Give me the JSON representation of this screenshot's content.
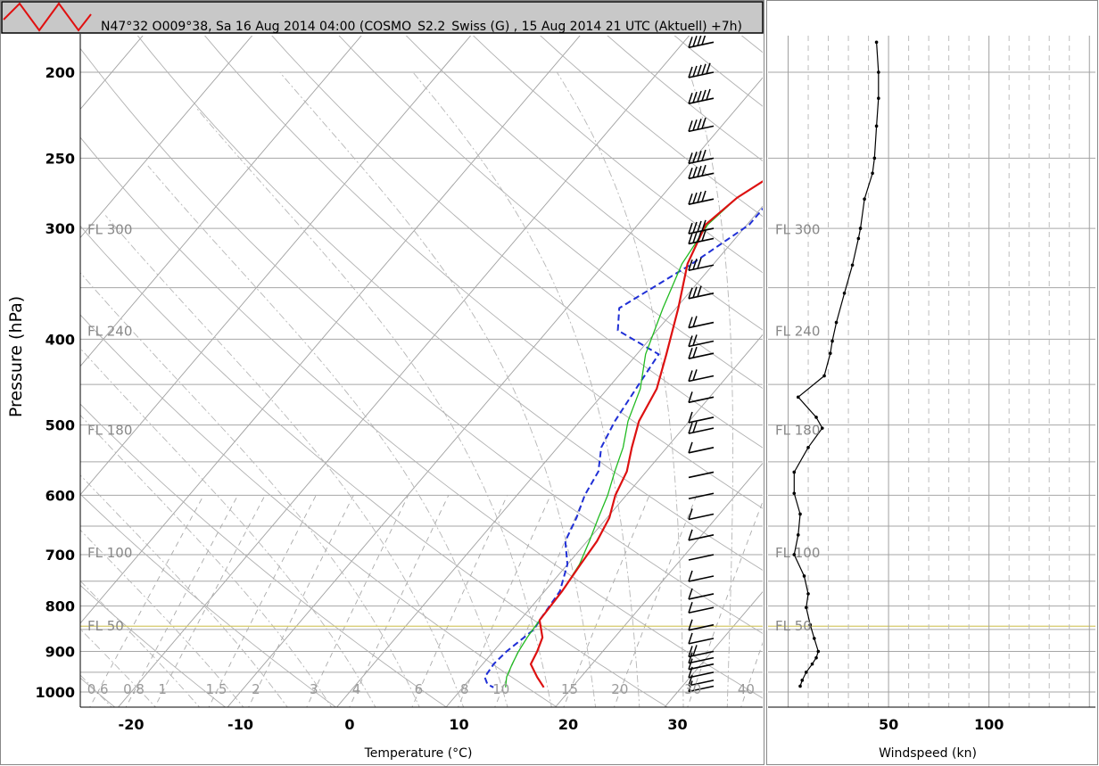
{
  "header": {
    "title": "N47°32 O009°38, Sa 16 Aug 2014 04:00 (COSMO_S2.2_Swiss (G) , 15 Aug 2014 21 UTC (Aktuell) +7h)",
    "logo_icon": "zigzag-logo-icon",
    "logo_color": "#e01010"
  },
  "colors": {
    "temperature": "#dd1111",
    "dewpoint": "#1f2fd6",
    "parcel": "#22bb22",
    "wind": "#000000",
    "flight_level_50": "#d4c96a",
    "grid": "#9a9a9a"
  },
  "chart_data": [
    {
      "id": "skewt",
      "type": "line",
      "xlabel": "Temperature (°C)",
      "ylabel": "Pressure (hPa)",
      "x_ticks": [
        "-20",
        "-10",
        "0",
        "10",
        "20",
        "30"
      ],
      "y_ticks": [
        "200",
        "250",
        "300",
        "400",
        "500",
        "600",
        "700",
        "800",
        "900",
        "1000"
      ],
      "y_scale": "log",
      "xlim": [
        -25,
        37
      ],
      "ylim": [
        1000,
        180
      ],
      "flight_levels": [
        "FL 300",
        "FL 240",
        "FL 180",
        "FL 100",
        "FL 50"
      ],
      "mixing_ratio_labels": [
        "0.6",
        "0.8",
        "1",
        "1.5",
        "2",
        "3",
        "4",
        "6",
        "8",
        "10",
        "15",
        "20",
        "30",
        "40"
      ],
      "series": [
        {
          "key": "temperature",
          "points": [
            [
              15.3,
              185
            ],
            [
              13.2,
              197
            ],
            [
              8.9,
              215
            ],
            [
              2.8,
              239
            ],
            [
              -1.2,
              258
            ],
            [
              -3.0,
              277
            ],
            [
              -3.8,
              297
            ],
            [
              -2.4,
              329
            ],
            [
              0.2,
              369
            ],
            [
              2.7,
              416
            ],
            [
              4.5,
              455
            ],
            [
              5.4,
              495
            ],
            [
              6.8,
              530
            ],
            [
              8.2,
              564
            ],
            [
              9.0,
              600
            ],
            [
              10.2,
              636
            ],
            [
              10.9,
              676
            ],
            [
              11.2,
              718
            ],
            [
              11.6,
              770
            ],
            [
              11.8,
              830
            ],
            [
              13.4,
              868
            ],
            [
              14.0,
              900
            ],
            [
              14.4,
              930
            ],
            [
              16.0,
              962
            ],
            [
              17.4,
              988
            ]
          ]
        },
        {
          "key": "parcel",
          "points": [
            [
              14.4,
              185
            ],
            [
              12.5,
              197
            ],
            [
              8.5,
              215
            ],
            [
              2.5,
              239
            ],
            [
              -1.2,
              258
            ],
            [
              -3.0,
              277
            ],
            [
              -3.6,
              297
            ],
            [
              -2.9,
              329
            ],
            [
              -1.2,
              369
            ],
            [
              0.8,
              416
            ],
            [
              3.0,
              455
            ],
            [
              4.4,
              495
            ],
            [
              6.0,
              530
            ],
            [
              7.1,
              564
            ],
            [
              8.3,
              600
            ],
            [
              9.2,
              636
            ],
            [
              10.2,
              676
            ],
            [
              11.1,
              718
            ],
            [
              11.6,
              770
            ],
            [
              11.8,
              830
            ],
            [
              12.0,
              868
            ],
            [
              12.3,
              900
            ],
            [
              12.7,
              930
            ],
            [
              13.2,
              962
            ],
            [
              13.9,
              988
            ]
          ]
        },
        {
          "key": "dewpoint",
          "points": [
            [
              -6.8,
              185
            ],
            [
              -6.3,
              197
            ],
            [
              -4.3,
              215
            ],
            [
              -2.9,
              239
            ],
            [
              -1.2,
              258
            ],
            [
              0.2,
              277
            ],
            [
              0.2,
              297
            ],
            [
              -2.0,
              329
            ],
            [
              -5.2,
              369
            ],
            [
              -3.6,
              391
            ],
            [
              2.0,
              416
            ],
            [
              2.6,
              455
            ],
            [
              3.2,
              495
            ],
            [
              4.0,
              530
            ],
            [
              5.6,
              564
            ],
            [
              6.2,
              600
            ],
            [
              7.2,
              636
            ],
            [
              8.0,
              676
            ],
            [
              10.0,
              718
            ],
            [
              11.4,
              770
            ],
            [
              11.8,
              830
            ],
            [
              12.0,
              850
            ],
            [
              11.2,
              900
            ],
            [
              11.0,
              930
            ],
            [
              11.2,
              962
            ],
            [
              12.0,
              980
            ],
            [
              12.8,
              988
            ]
          ]
        }
      ]
    },
    {
      "id": "wind",
      "type": "line",
      "xlabel": "Windspeed (kn)",
      "x_ticks": [
        "50",
        "100"
      ],
      "xlim": [
        -10,
        153
      ],
      "y_scale": "log",
      "ylim": [
        1000,
        180
      ],
      "flight_levels": [
        "FL 300",
        "FL 240",
        "FL 180",
        "FL 100",
        "FL 50"
      ],
      "series": [
        {
          "key": "windspeed",
          "points": [
            [
              44,
              185
            ],
            [
              45,
              200
            ],
            [
              45,
              214
            ],
            [
              44,
              230
            ],
            [
              43,
              250
            ],
            [
              42,
              260
            ],
            [
              38,
              278
            ],
            [
              36,
              300
            ],
            [
              35,
              308
            ],
            [
              32,
              330
            ],
            [
              28,
              355
            ],
            [
              24,
              383
            ],
            [
              22,
              402
            ],
            [
              21,
              415
            ],
            [
              18,
              440
            ],
            [
              5,
              465
            ],
            [
              14,
              490
            ],
            [
              17,
              504
            ],
            [
              10,
              530
            ],
            [
              3,
              565
            ],
            [
              3,
              597
            ],
            [
              6,
              630
            ],
            [
              5,
              665
            ],
            [
              3,
              700
            ],
            [
              8,
              740
            ],
            [
              10,
              775
            ],
            [
              9,
              803
            ],
            [
              11,
              840
            ],
            [
              13,
              870
            ],
            [
              15,
              900
            ],
            [
              14,
              915
            ],
            [
              12,
              930
            ],
            [
              9,
              950
            ],
            [
              7,
              970
            ],
            [
              6,
              985
            ]
          ]
        }
      ]
    }
  ]
}
